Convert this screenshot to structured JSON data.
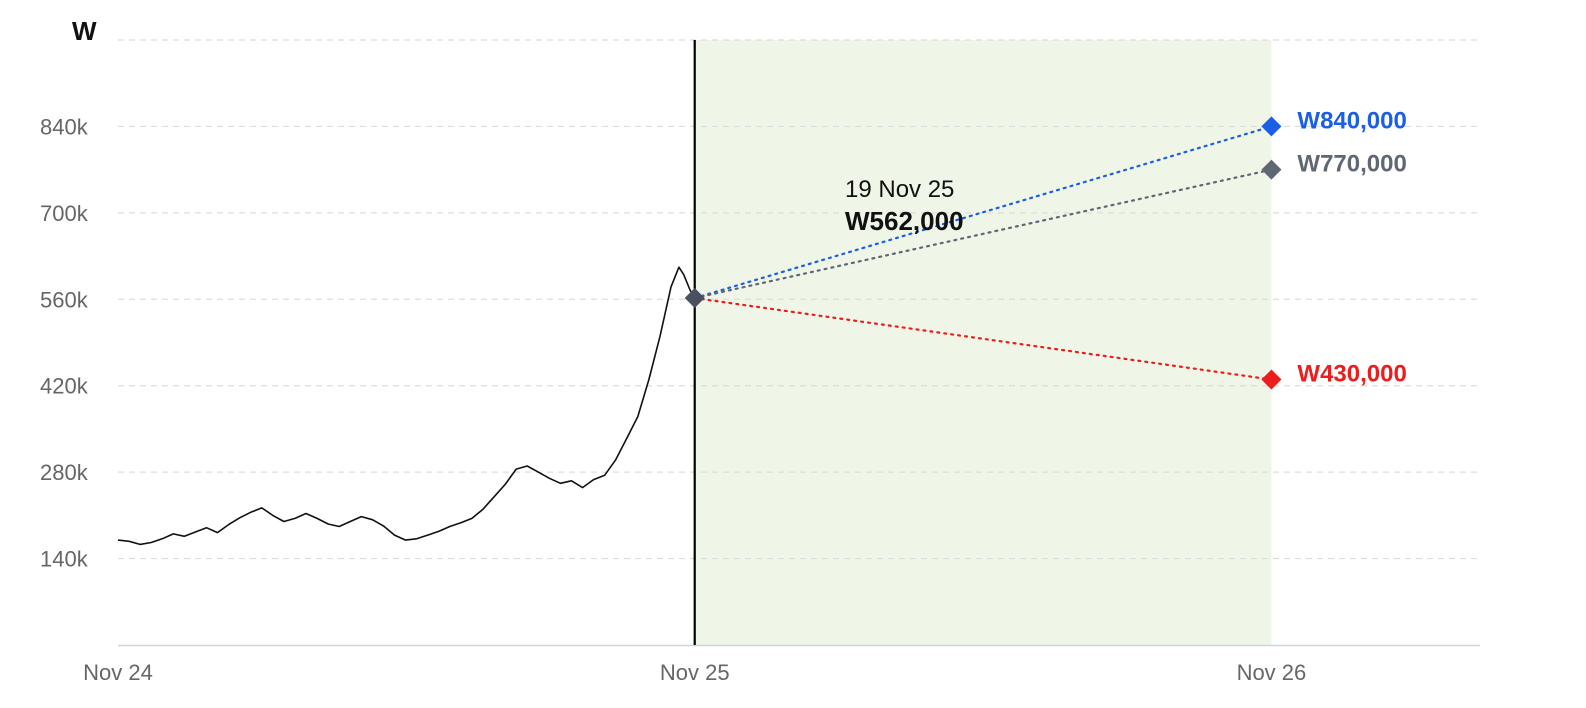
{
  "chart_data": {
    "type": "line",
    "y_unit_label": "W",
    "y_ticks": [
      "140k",
      "280k",
      "420k",
      "560k",
      "700k",
      "840k"
    ],
    "y_tick_values": [
      140000,
      280000,
      420000,
      560000,
      700000,
      840000
    ],
    "ylim": [
      0,
      980000
    ],
    "x_ticks": [
      "Nov 24",
      "Nov 25",
      "Nov 26"
    ],
    "x_tick_dates": [
      "2024-11-19",
      "2025-11-19",
      "2026-11-19"
    ],
    "xlim": [
      "2024-11-19",
      "2027-03-31"
    ],
    "grid": "horizontal dashed",
    "current": {
      "date": "2025-11-19",
      "date_label": "19 Nov 25",
      "value": 562000,
      "value_label": "W562,000"
    },
    "forecast_region": [
      "2025-11-19",
      "2026-11-19"
    ],
    "series": [
      {
        "points": [
          [
            "2024-11-19",
            170000
          ],
          [
            "2024-11-26",
            168000
          ],
          [
            "2024-12-03",
            163000
          ],
          [
            "2024-12-10",
            166000
          ],
          [
            "2024-12-17",
            172000
          ],
          [
            "2024-12-24",
            180000
          ],
          [
            "2024-12-31",
            176000
          ],
          [
            "2025-01-07",
            183000
          ],
          [
            "2025-01-14",
            190000
          ],
          [
            "2025-01-21",
            182000
          ],
          [
            "2025-01-28",
            195000
          ],
          [
            "2025-02-04",
            206000
          ],
          [
            "2025-02-11",
            215000
          ],
          [
            "2025-02-18",
            222000
          ],
          [
            "2025-02-25",
            210000
          ],
          [
            "2025-03-04",
            200000
          ],
          [
            "2025-03-11",
            205000
          ],
          [
            "2025-03-18",
            213000
          ],
          [
            "2025-03-25",
            205000
          ],
          [
            "2025-04-01",
            196000
          ],
          [
            "2025-04-08",
            192000
          ],
          [
            "2025-04-15",
            200000
          ],
          [
            "2025-04-22",
            208000
          ],
          [
            "2025-04-29",
            203000
          ],
          [
            "2025-05-06",
            193000
          ],
          [
            "2025-05-13",
            178000
          ],
          [
            "2025-05-20",
            170000
          ],
          [
            "2025-05-27",
            172000
          ],
          [
            "2025-06-03",
            178000
          ],
          [
            "2025-06-10",
            184000
          ],
          [
            "2025-06-17",
            192000
          ],
          [
            "2025-06-24",
            198000
          ],
          [
            "2025-07-01",
            205000
          ],
          [
            "2025-07-08",
            220000
          ],
          [
            "2025-07-15",
            240000
          ],
          [
            "2025-07-22",
            260000
          ],
          [
            "2025-07-29",
            285000
          ],
          [
            "2025-08-05",
            290000
          ],
          [
            "2025-08-12",
            280000
          ],
          [
            "2025-08-19",
            270000
          ],
          [
            "2025-08-26",
            262000
          ],
          [
            "2025-09-02",
            266000
          ],
          [
            "2025-09-09",
            255000
          ],
          [
            "2025-09-16",
            268000
          ],
          [
            "2025-09-23",
            275000
          ],
          [
            "2025-09-30",
            300000
          ],
          [
            "2025-10-07",
            335000
          ],
          [
            "2025-10-14",
            370000
          ],
          [
            "2025-10-21",
            430000
          ],
          [
            "2025-10-28",
            500000
          ],
          [
            "2025-11-04",
            580000
          ],
          [
            "2025-11-09",
            612000
          ],
          [
            "2025-11-12",
            600000
          ],
          [
            "2025-11-16",
            575000
          ],
          [
            "2025-11-19",
            562000
          ]
        ]
      }
    ],
    "forecasts": [
      {
        "value": 840000,
        "label": "W840,000",
        "color": "#1a5fe6",
        "date": "2026-11-19"
      },
      {
        "value": 770000,
        "label": "W770,000",
        "color": "#5f6775",
        "date": "2026-11-19"
      },
      {
        "value": 430000,
        "label": "W430,000",
        "color": "#ee1c1c",
        "date": "2026-11-19"
      }
    ],
    "colors": {
      "line": "#111111",
      "grid": "#dddddd",
      "axis": "#c9d6e6",
      "forecast_band": "#eff6e8",
      "current_marker": "#4a5060"
    }
  }
}
